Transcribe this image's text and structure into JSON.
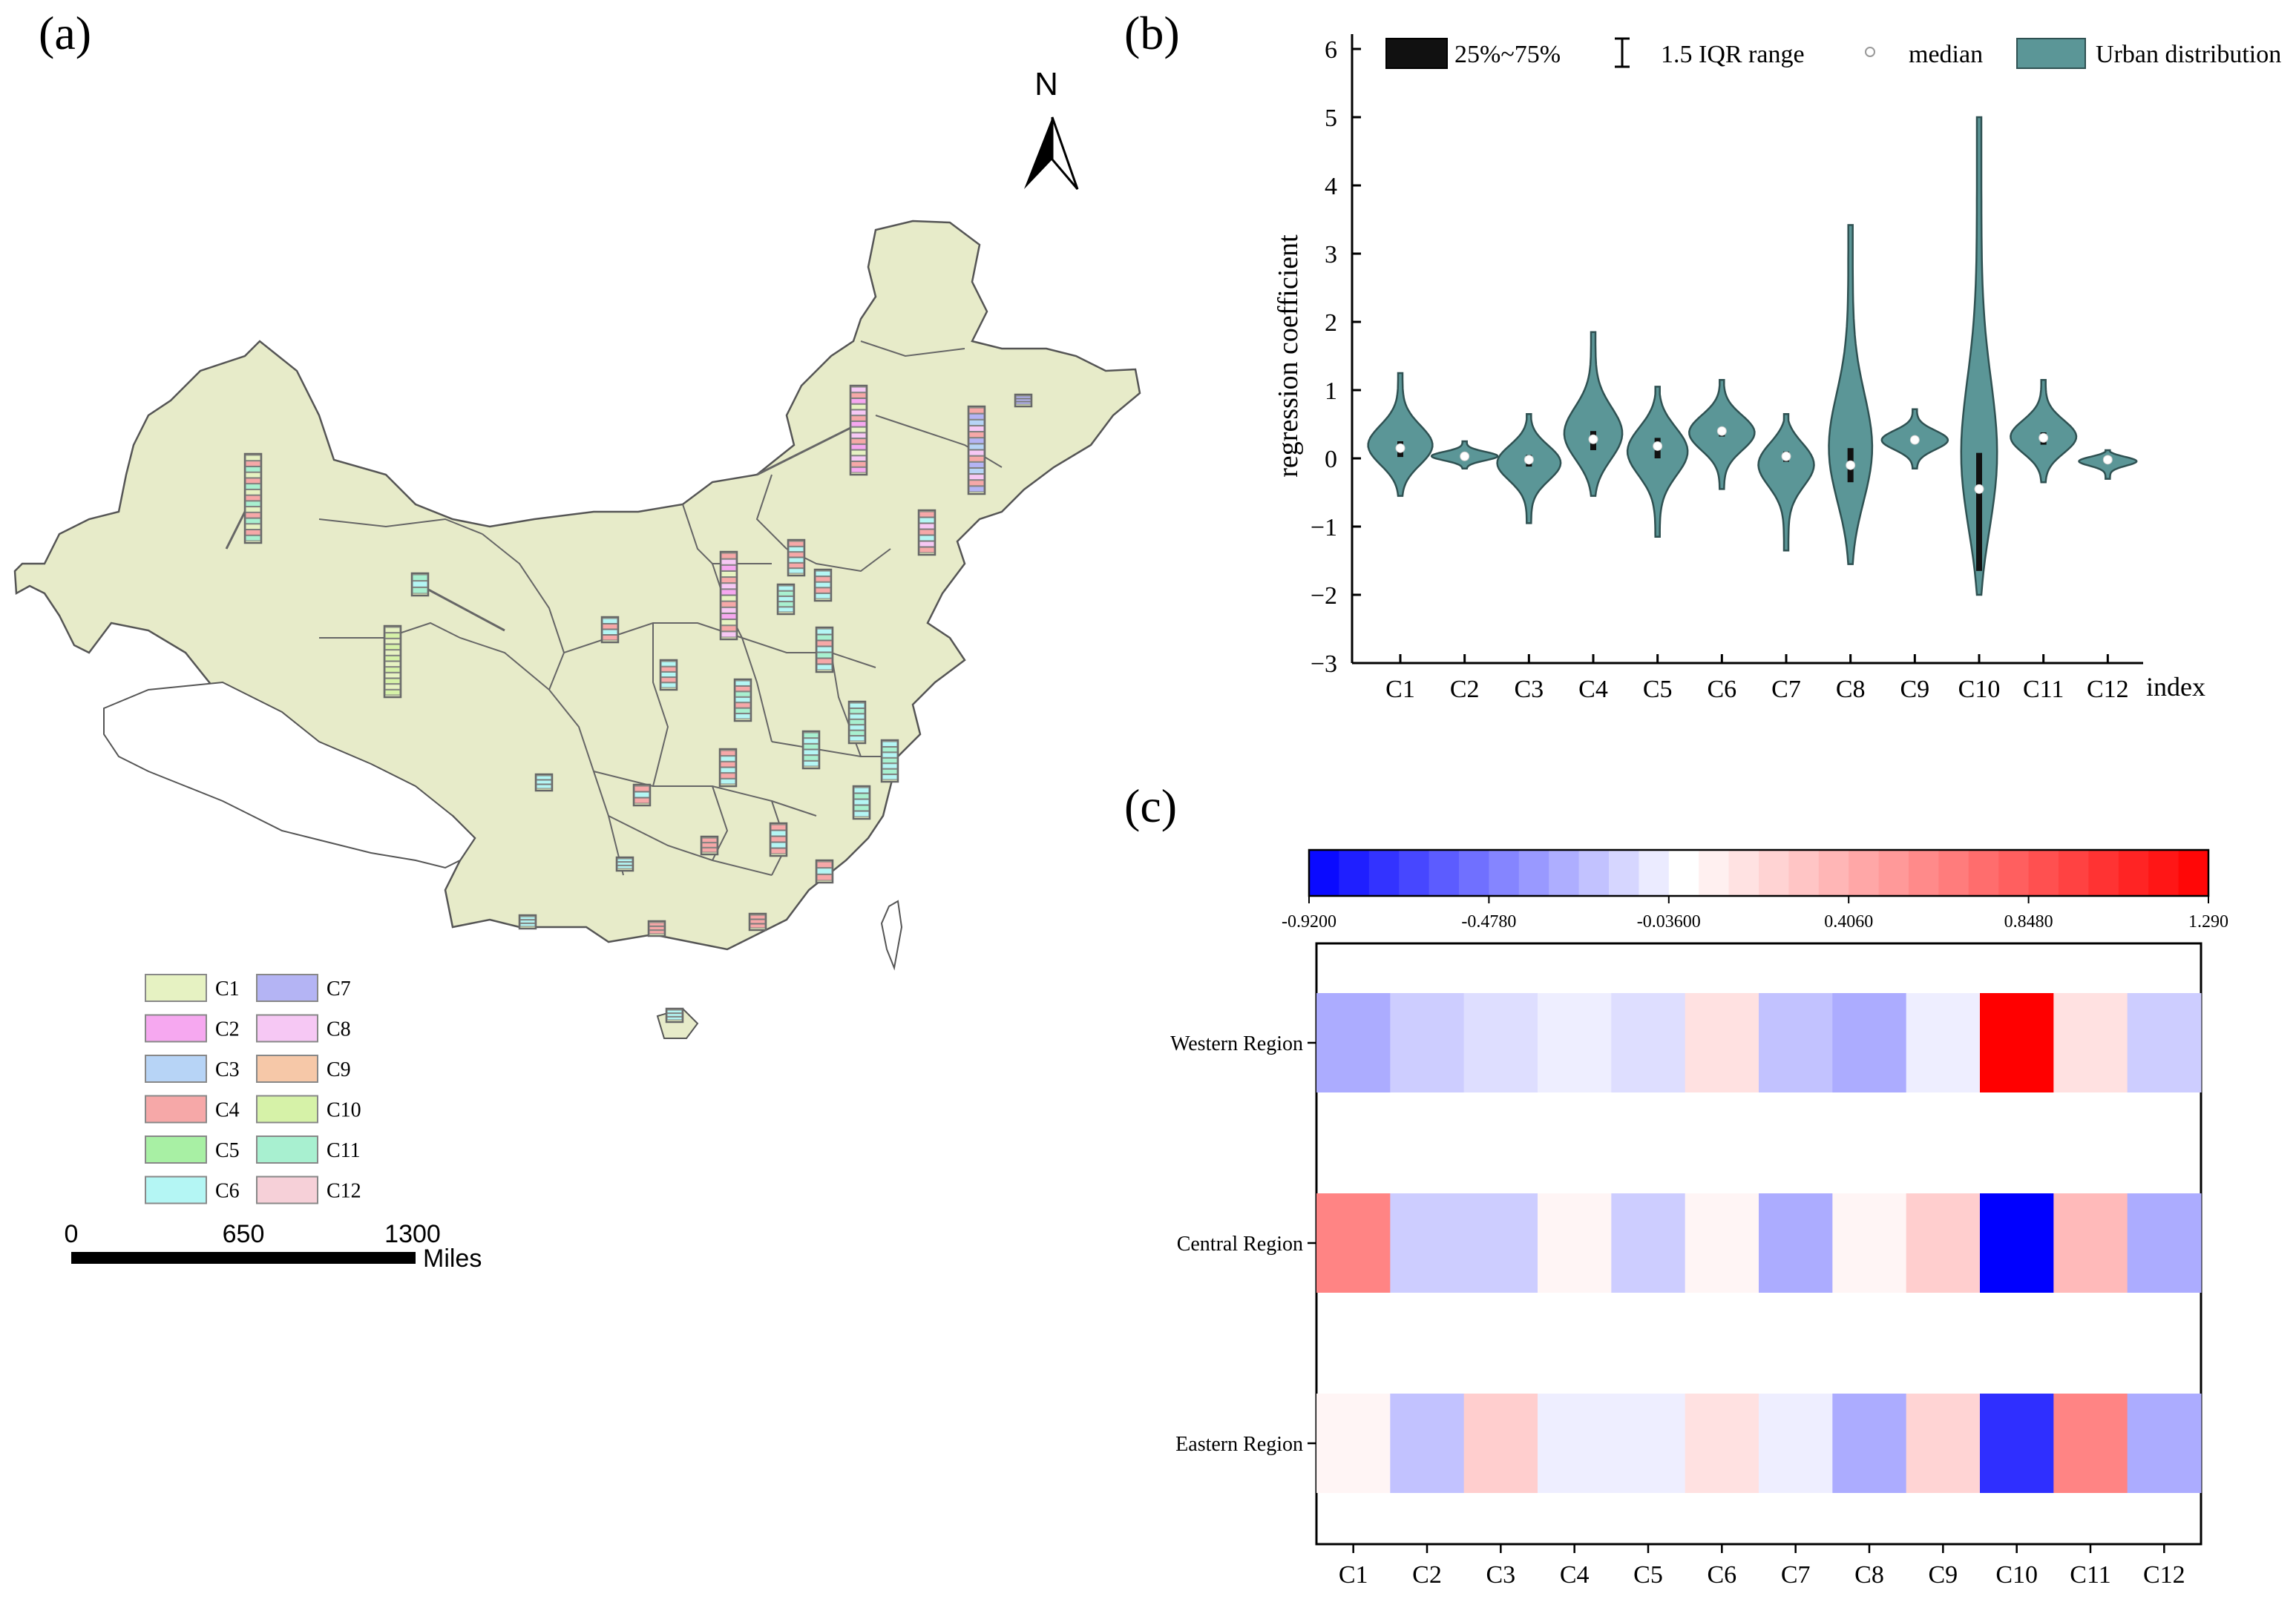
{
  "panels": {
    "a": {
      "label": "(a)"
    },
    "b": {
      "label": "(b)"
    },
    "c": {
      "label": "(c)"
    }
  },
  "map": {
    "north_label": "N",
    "scale_ticks": [
      "0",
      "650",
      "1300"
    ],
    "scale_unit": "Miles",
    "legend": [
      {
        "label": "C1",
        "color": "#e6f2c2"
      },
      {
        "label": "C2",
        "color": "#f6a8f0"
      },
      {
        "label": "C3",
        "color": "#b7d4f6"
      },
      {
        "label": "C4",
        "color": "#f6a8a8"
      },
      {
        "label": "C5",
        "color": "#a8f0a4"
      },
      {
        "label": "C6",
        "color": "#b4f6f4"
      },
      {
        "label": "C7",
        "color": "#b4b4f4"
      },
      {
        "label": "C8",
        "color": "#f6c8f4"
      },
      {
        "label": "C9",
        "color": "#f6c8a8"
      },
      {
        "label": "C10",
        "color": "#d6f2a8"
      },
      {
        "label": "C11",
        "color": "#a8f0d0"
      },
      {
        "label": "C12",
        "color": "#f6d0d8"
      }
    ],
    "colors": {
      "land": "#e7ebc9",
      "border": "#555555",
      "bar_outline": "#666666"
    }
  },
  "chart_data": [
    {
      "type": "violin",
      "title": "",
      "ylabel": "regression coefficient",
      "xlabel": "index",
      "ylim": [
        -3,
        6
      ],
      "yticks": [
        "6",
        "5",
        "4",
        "3",
        "2",
        "1",
        "0",
        "−1",
        "−2",
        "−3"
      ],
      "categories": [
        "C1",
        "C2",
        "C3",
        "C4",
        "C5",
        "C6",
        "C7",
        "C8",
        "C9",
        "C10",
        "C11",
        "C12"
      ],
      "series": [
        {
          "name": "Urban distribution",
          "min": [
            -0.55,
            -0.15,
            -0.95,
            -0.55,
            -1.15,
            -0.45,
            -1.35,
            -1.55,
            -0.15,
            -2.0,
            -0.35,
            -0.3
          ],
          "max": [
            1.25,
            0.25,
            0.65,
            1.85,
            1.05,
            1.15,
            0.65,
            3.42,
            0.72,
            5.0,
            1.15,
            0.12
          ],
          "q1": [
            0.02,
            0.0,
            -0.12,
            0.12,
            0.0,
            0.32,
            -0.05,
            -0.35,
            0.22,
            -1.65,
            0.2,
            -0.05
          ],
          "q3": [
            0.25,
            0.06,
            0.05,
            0.4,
            0.3,
            0.45,
            0.1,
            0.15,
            0.32,
            0.08,
            0.38,
            0.02
          ],
          "median": [
            0.15,
            0.03,
            -0.02,
            0.28,
            0.18,
            0.4,
            0.03,
            -0.1,
            0.27,
            -0.45,
            0.3,
            -0.02
          ]
        }
      ],
      "legend": {
        "iqr_box": "25%~75%",
        "whisker": "1.5 IQR range",
        "median": "median",
        "distribution": "Urban distribution"
      },
      "colors": {
        "violin": "#5b9697",
        "violin_edge": "#2f5152",
        "box": "#111111",
        "median": "#ffffff"
      }
    },
    {
      "type": "heatmap",
      "title": "",
      "rows": [
        "Western Region",
        "Central Region",
        "Eastern Region"
      ],
      "columns": [
        "C1",
        "C2",
        "C3",
        "C4",
        "C5",
        "C6",
        "C7",
        "C8",
        "C9",
        "C10",
        "C11",
        "C12"
      ],
      "values": [
        [
          -0.3,
          -0.18,
          -0.12,
          -0.06,
          -0.12,
          0.15,
          -0.22,
          -0.3,
          -0.06,
          1.29,
          0.15,
          -0.18
        ],
        [
          0.62,
          -0.18,
          -0.18,
          0.05,
          -0.18,
          0.05,
          -0.3,
          0.05,
          0.25,
          -0.92,
          0.35,
          -0.3
        ],
        [
          0.05,
          -0.22,
          0.25,
          -0.06,
          -0.06,
          0.15,
          -0.06,
          -0.3,
          0.22,
          -0.75,
          0.62,
          -0.3
        ]
      ],
      "colorbar": {
        "min": -0.92,
        "max": 1.29,
        "tick_labels": [
          "-0.9200",
          "-0.4780",
          "-0.03600",
          "0.4060",
          "0.8480",
          "1.290"
        ],
        "tick_values": [
          -0.92,
          -0.478,
          -0.036,
          0.406,
          0.848,
          1.29
        ],
        "steps": 30
      },
      "colors": {
        "low": "#0000ff",
        "mid": "#ffffff",
        "high": "#ff0000"
      }
    }
  ]
}
